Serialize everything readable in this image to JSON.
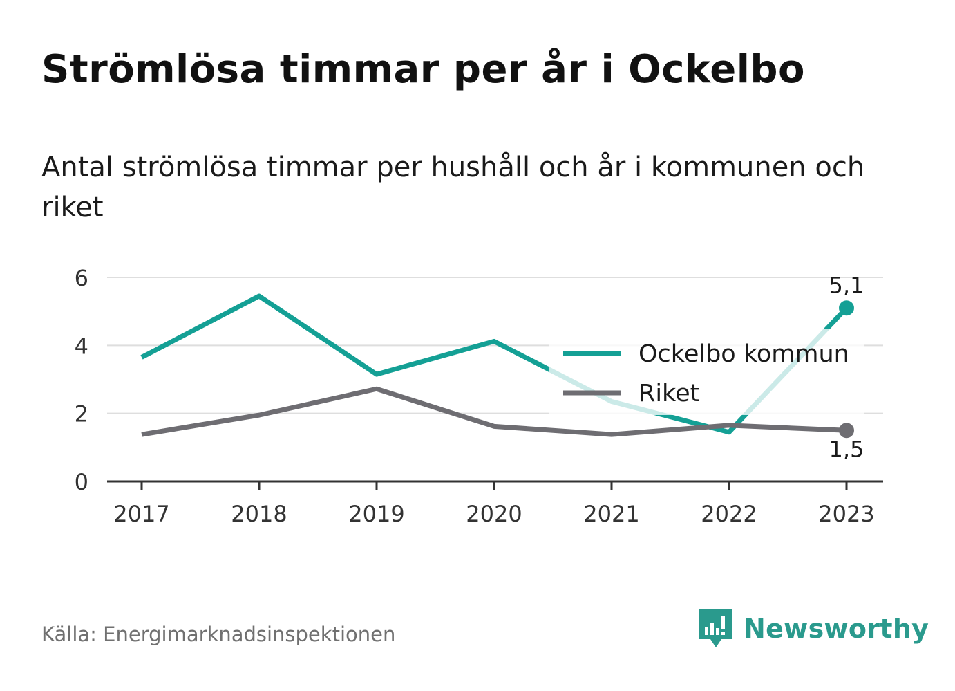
{
  "title": "Strömlösa timmar per år i Ockelbo",
  "subtitle": "Antal strömlösa timmar per hushåll och år i kommunen och riket",
  "source": "Källa: Energimarknadsinspektionen",
  "brand": {
    "name": "Newsworthy",
    "icon": "newsworthy-logo-icon",
    "color": "#2a9a8d"
  },
  "chart_data": {
    "type": "line",
    "categories": [
      "2017",
      "2018",
      "2019",
      "2020",
      "2021",
      "2022",
      "2023"
    ],
    "ylim": [
      0,
      6
    ],
    "yticks": [
      0,
      2,
      4,
      6
    ],
    "grid": true,
    "legend_position": "right, inside plot",
    "series": [
      {
        "name": "Ockelbo kommun",
        "color": "#14a095",
        "values": [
          3.65,
          5.45,
          3.15,
          4.12,
          2.35,
          1.45,
          5.1
        ],
        "end_label": "5,1"
      },
      {
        "name": "Riket",
        "color": "#6e6d72",
        "values": [
          1.38,
          1.95,
          2.72,
          1.62,
          1.38,
          1.65,
          1.5
        ],
        "end_label": "1,5"
      }
    ]
  }
}
